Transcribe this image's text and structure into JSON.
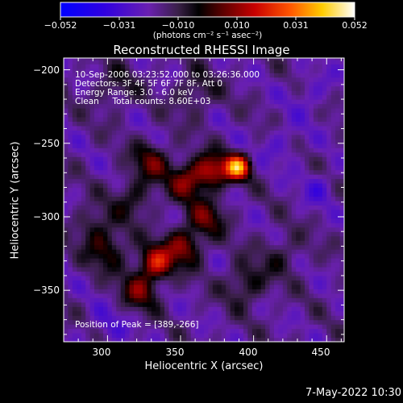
{
  "chart_data": {
    "type": "heatmap",
    "title": "Reconstructed RHESSI Image",
    "xlabel": "Heliocentric X (arcsec)",
    "ylabel": "Heliocentric Y (arcsec)",
    "xlim": [
      270,
      462
    ],
    "ylim": [
      -385,
      -192
    ],
    "x_ticks": [
      300,
      350,
      400,
      450
    ],
    "y_ticks": [
      -200,
      -250,
      -300,
      -350
    ],
    "x_tick_labels": [
      "300",
      "350",
      "400",
      "450"
    ],
    "y_tick_labels": [
      "−200",
      "−250",
      "−300",
      "−350"
    ],
    "colorbar": {
      "min": -0.052,
      "max": 0.052,
      "tick_labels": [
        "−0.052",
        "−0.031",
        "−0.010",
        "0.010",
        "0.031",
        "0.052"
      ],
      "unit_label": "(photons cm⁻² s⁻¹ asec⁻²)"
    },
    "annotations": [
      "10-Sep-2006 03:23:52.000 to 03:26:36.000",
      "Detectors: 3F 4F 5F 6F 7F 8F, Att 0",
      "Energy Range: 3.0 - 6.0 keV",
      "Clean     Total counts: 8.60E+03"
    ],
    "peak": {
      "label": "Position of Peak = [389,-266]",
      "x": 389,
      "y": -266
    },
    "sources": [
      {
        "x": 389,
        "y": -266,
        "amp": 0.052,
        "sigma": 6
      },
      {
        "x": 372,
        "y": -268,
        "amp": 0.03,
        "sigma": 8
      },
      {
        "x": 355,
        "y": -275,
        "amp": 0.026,
        "sigma": 9
      },
      {
        "x": 330,
        "y": -262,
        "amp": 0.02,
        "sigma": 9
      },
      {
        "x": 318,
        "y": -287,
        "amp": 0.014,
        "sigma": 10
      },
      {
        "x": 368,
        "y": -300,
        "amp": 0.02,
        "sigma": 9
      },
      {
        "x": 352,
        "y": -320,
        "amp": 0.026,
        "sigma": 9
      },
      {
        "x": 333,
        "y": -331,
        "amp": 0.034,
        "sigma": 8
      },
      {
        "x": 322,
        "y": -350,
        "amp": 0.022,
        "sigma": 9
      },
      {
        "x": 300,
        "y": -322,
        "amp": 0.018,
        "sigma": 10
      },
      {
        "x": 290,
        "y": -305,
        "amp": 0.012,
        "sigma": 9
      },
      {
        "x": 395,
        "y": -345,
        "amp": 0.016,
        "sigma": 10
      },
      {
        "x": 420,
        "y": -325,
        "amp": 0.01,
        "sigma": 10
      },
      {
        "x": 360,
        "y": -215,
        "amp": 0.012,
        "sigma": 10
      },
      {
        "x": 305,
        "y": -212,
        "amp": 0.01,
        "sigma": 10
      },
      {
        "x": 445,
        "y": -280,
        "amp": -0.01,
        "sigma": 8
      },
      {
        "x": 420,
        "y": -250,
        "amp": -0.008,
        "sigma": 10
      },
      {
        "x": 300,
        "y": -375,
        "amp": -0.008,
        "sigma": 10
      },
      {
        "x": 440,
        "y": -215,
        "amp": -0.008,
        "sigma": 10
      }
    ]
  },
  "footer": {
    "date": "7-May-2022 10:30"
  }
}
